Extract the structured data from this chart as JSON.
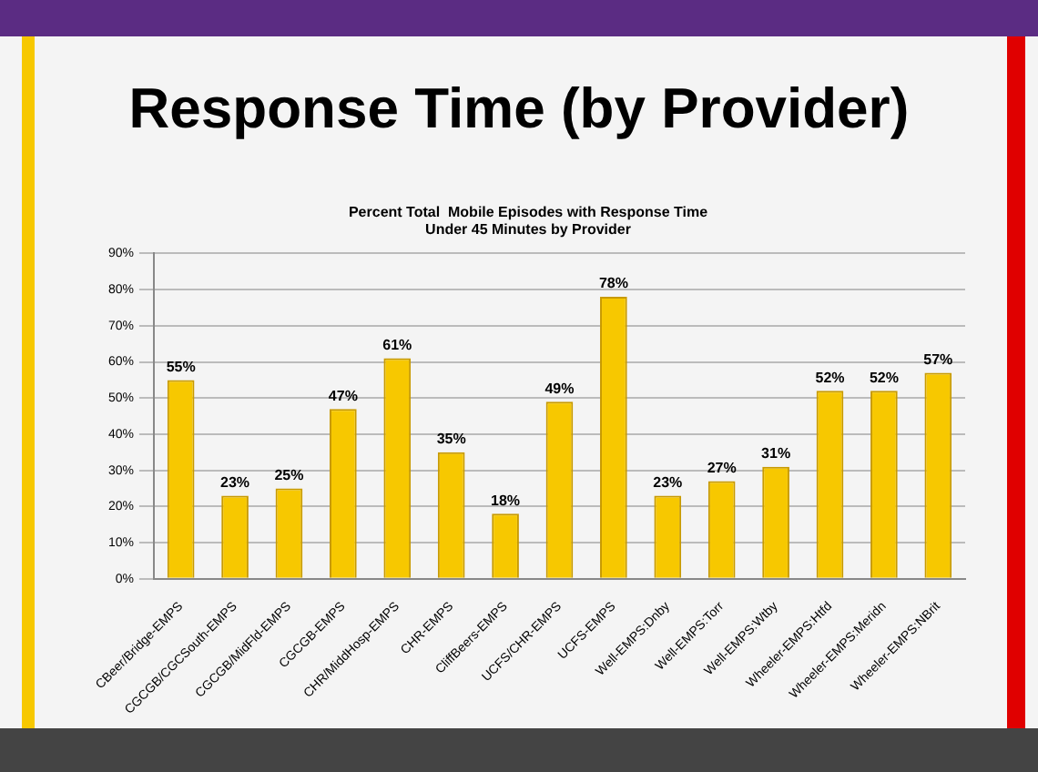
{
  "chart_data": {
    "type": "bar",
    "title": "Response Time (by Provider)",
    "subtitle": "Percent Total  Mobile Episodes with Response Time\nUnder 45 Minutes by Provider",
    "categories": [
      "CBeer/Bridge-EMPS",
      "CGCGB/CGCSouth-EMPS",
      "CGCGB/MidFld-EMPS",
      "CGCGB-EMPS",
      "CHR/MiddHosp-EMPS",
      "CHR-EMPS",
      "CliffBeers-EMPS",
      "UCFS/CHR-EMPS",
      "UCFS-EMPS",
      "Well-EMPS:Dnby",
      "Well-EMPS:Torr",
      "Well-EMPS:Wtby",
      "Wheeler-EMPS:Htfd",
      "Wheeler-EMPS:Meridn",
      "Wheeler-EMPS:NBrit"
    ],
    "values": [
      55,
      23,
      25,
      47,
      61,
      35,
      18,
      49,
      78,
      23,
      27,
      31,
      52,
      52,
      57
    ],
    "value_labels": [
      "55%",
      "23%",
      "25%",
      "47%",
      "61%",
      "35%",
      "18%",
      "49%",
      "78%",
      "23%",
      "27%",
      "31%",
      "52%",
      "52%",
      "57%"
    ],
    "color": "#f7c800",
    "ylim": [
      0,
      90
    ],
    "yticks": [
      {
        "value": 0,
        "label": "0%"
      },
      {
        "value": 10,
        "label": "10%"
      },
      {
        "value": 20,
        "label": "20%"
      },
      {
        "value": 30,
        "label": "30%"
      },
      {
        "value": 40,
        "label": "40%"
      },
      {
        "value": 50,
        "label": "50%"
      },
      {
        "value": 60,
        "label": "60%"
      },
      {
        "value": 70,
        "label": "70%"
      },
      {
        "value": 80,
        "label": "80%"
      },
      {
        "value": 90,
        "label": "90%"
      }
    ],
    "grid": "y",
    "legend": false
  }
}
